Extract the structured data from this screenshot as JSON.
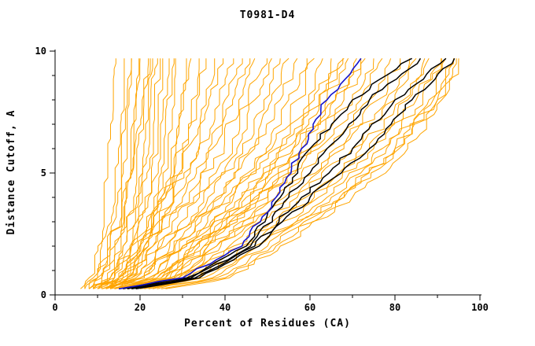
{
  "chart_data": {
    "type": "line",
    "title": "T0981-D4",
    "xlabel": "Percent of Residues (CA)",
    "ylabel": "Distance Cutoff, A",
    "xlim": [
      0,
      100
    ],
    "ylim": [
      0,
      10
    ],
    "x_major_ticks": [
      0,
      20,
      40,
      60,
      80,
      100
    ],
    "x_minor_step": 10,
    "y_major_ticks": [
      0,
      5,
      10
    ],
    "y_minor_step": 1,
    "grid": false,
    "legend": "none",
    "colors": {
      "orange": "#FFA500",
      "black": "#000000",
      "blue": "#1515CE"
    },
    "y_anchors": [
      0.25,
      0.7,
      2,
      4,
      6,
      8,
      9.7
    ],
    "series": {
      "orange": [
        [
          6,
          8,
          10,
          11,
          12,
          13,
          14
        ],
        [
          7,
          9,
          11,
          13,
          14,
          15,
          15
        ],
        [
          7,
          10,
          12,
          14,
          15,
          16,
          17
        ],
        [
          8,
          10,
          13,
          15,
          16,
          17,
          18
        ],
        [
          8,
          11,
          14,
          16,
          17,
          18,
          19
        ],
        [
          9,
          11,
          14,
          17,
          18,
          19,
          20
        ],
        [
          9,
          12,
          15,
          18,
          19,
          20,
          21
        ],
        [
          10,
          13,
          16,
          19,
          20,
          21,
          22
        ],
        [
          10,
          13,
          16,
          19,
          21,
          22,
          23
        ],
        [
          11,
          14,
          17,
          20,
          22,
          23,
          24
        ],
        [
          11,
          14,
          18,
          21,
          23,
          24,
          25
        ],
        [
          12,
          15,
          18,
          22,
          24,
          25,
          26
        ],
        [
          12,
          15,
          19,
          23,
          25,
          26,
          27
        ],
        [
          13,
          16,
          20,
          24,
          26,
          27,
          28
        ],
        [
          13,
          17,
          21,
          25,
          27,
          29,
          30
        ],
        [
          14,
          17,
          22,
          26,
          28,
          30,
          32
        ],
        [
          14,
          18,
          23,
          27,
          30,
          32,
          33
        ],
        [
          8,
          14,
          18,
          25,
          30,
          33,
          35
        ],
        [
          9,
          15,
          19,
          26,
          31,
          35,
          37
        ],
        [
          9,
          15,
          20,
          27,
          33,
          36,
          39
        ],
        [
          10,
          16,
          21,
          28,
          34,
          38,
          41
        ],
        [
          10,
          17,
          22,
          30,
          36,
          40,
          43
        ],
        [
          11,
          17,
          23,
          31,
          37,
          41,
          45
        ],
        [
          11,
          18,
          24,
          32,
          39,
          43,
          47
        ],
        [
          12,
          19,
          25,
          34,
          41,
          45,
          49
        ],
        [
          12,
          20,
          26,
          35,
          42,
          47,
          51
        ],
        [
          13,
          20,
          27,
          36,
          44,
          49,
          53
        ],
        [
          13,
          21,
          28,
          38,
          46,
          51,
          55
        ],
        [
          14,
          22,
          29,
          39,
          47,
          53,
          57
        ],
        [
          14,
          23,
          30,
          41,
          49,
          55,
          59
        ],
        [
          15,
          24,
          31,
          42,
          51,
          57,
          61
        ],
        [
          15,
          25,
          33,
          44,
          53,
          59,
          63
        ],
        [
          16,
          26,
          34,
          45,
          54,
          61,
          65
        ],
        [
          17,
          27,
          35,
          47,
          56,
          62,
          67
        ],
        [
          17,
          28,
          36,
          48,
          58,
          64,
          69
        ],
        [
          18,
          29,
          38,
          50,
          60,
          66,
          71
        ],
        [
          14,
          24,
          32,
          46,
          58,
          68,
          73
        ],
        [
          15,
          25,
          33,
          48,
          60,
          70,
          75
        ],
        [
          15,
          26,
          35,
          50,
          62,
          72,
          77
        ],
        [
          16,
          27,
          36,
          52,
          64,
          74,
          79
        ],
        [
          16,
          28,
          38,
          54,
          66,
          76,
          81
        ],
        [
          17,
          29,
          39,
          55,
          68,
          78,
          83
        ],
        [
          18,
          30,
          41,
          57,
          70,
          80,
          85
        ],
        [
          18,
          31,
          42,
          59,
          72,
          82,
          87
        ],
        [
          19,
          32,
          44,
          61,
          74,
          83,
          88
        ],
        [
          20,
          33,
          45,
          62,
          75,
          85,
          90
        ],
        [
          21,
          34,
          47,
          64,
          77,
          86,
          91
        ],
        [
          22,
          35,
          48,
          65,
          78,
          88,
          92
        ],
        [
          23,
          37,
          50,
          67,
          80,
          89,
          93
        ],
        [
          24,
          38,
          51,
          68,
          81,
          90,
          94
        ],
        [
          25,
          40,
          53,
          70,
          83,
          91,
          95
        ],
        [
          13,
          22,
          30,
          44,
          56,
          66,
          72
        ],
        [
          12,
          21,
          28,
          40,
          52,
          62,
          68
        ],
        [
          26,
          41,
          52,
          68,
          80,
          90,
          94
        ],
        [
          8,
          10,
          13,
          16,
          18,
          20,
          22
        ]
      ],
      "black": [
        [
          16,
          31,
          45,
          53,
          60,
          70,
          84
        ],
        [
          17,
          32,
          46,
          55,
          64,
          74,
          86
        ],
        [
          18,
          33,
          47,
          58,
          70,
          80,
          92
        ],
        [
          19,
          34,
          48,
          60,
          74,
          84,
          94
        ]
      ],
      "blue": [
        [
          15,
          30,
          44,
          52,
          58,
          64,
          72
        ]
      ]
    }
  }
}
